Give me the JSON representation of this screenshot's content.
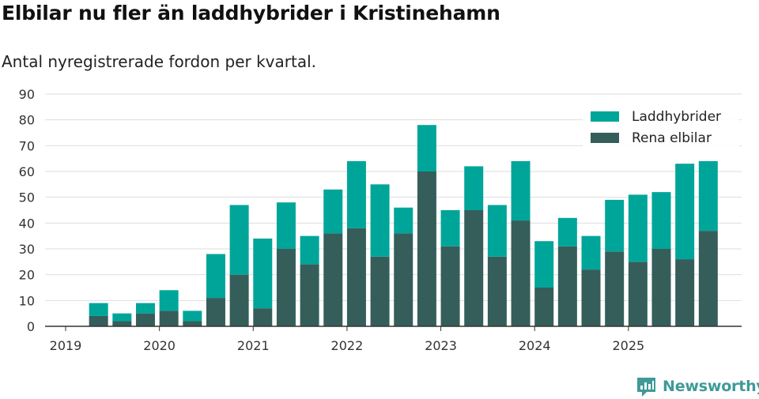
{
  "title": "Elbilar nu fler än laddhybrider i Kristinehamn",
  "subtitle": "Antal nyregistrerade fordon per kvartal.",
  "brand": {
    "name": "Newsworthy",
    "icon": "newsworthy-logo-icon",
    "color": "#3f9a98"
  },
  "chart_data": {
    "type": "bar",
    "stacked": true,
    "title": "Elbilar nu fler än laddhybrider i Kristinehamn",
    "subtitle": "Antal nyregistrerade fordon per kvartal.",
    "xlabel": "",
    "ylabel": "",
    "ylim": [
      0,
      90
    ],
    "yticks": [
      0,
      10,
      20,
      30,
      40,
      50,
      60,
      70,
      80,
      90
    ],
    "grid": true,
    "legend_position": "top-right",
    "year_ticks": [
      "2019",
      "2020",
      "2021",
      "2022",
      "2023",
      "2024",
      "2025"
    ],
    "categories": [
      "2019 Q1",
      "2019 Q2",
      "2019 Q3",
      "2019 Q4",
      "2020 Q1",
      "2020 Q2",
      "2020 Q3",
      "2020 Q4",
      "2021 Q1",
      "2021 Q2",
      "2021 Q3",
      "2021 Q4",
      "2022 Q1",
      "2022 Q2",
      "2022 Q3",
      "2022 Q4",
      "2023 Q1",
      "2023 Q2",
      "2023 Q3",
      "2023 Q4",
      "2024 Q1",
      "2024 Q2",
      "2024 Q3",
      "2024 Q4",
      "2025 Q1",
      "2025 Q2",
      "2025 Q3",
      "2025 Q4"
    ],
    "series": [
      {
        "name": "Rena elbilar",
        "color": "#355e5a",
        "values": [
          0,
          4,
          2,
          5,
          6,
          2,
          11,
          20,
          7,
          30,
          24,
          36,
          38,
          27,
          36,
          60,
          31,
          45,
          27,
          41,
          15,
          31,
          22,
          29,
          25,
          30,
          26,
          37
        ]
      },
      {
        "name": "Laddhybrider",
        "color": "#00a59a",
        "values": [
          0,
          5,
          3,
          4,
          8,
          4,
          17,
          27,
          27,
          18,
          11,
          17,
          26,
          28,
          10,
          18,
          14,
          17,
          20,
          23,
          18,
          11,
          13,
          20,
          26,
          22,
          37,
          27
        ]
      }
    ],
    "legend": [
      "Laddhybrider",
      "Rena elbilar"
    ]
  }
}
